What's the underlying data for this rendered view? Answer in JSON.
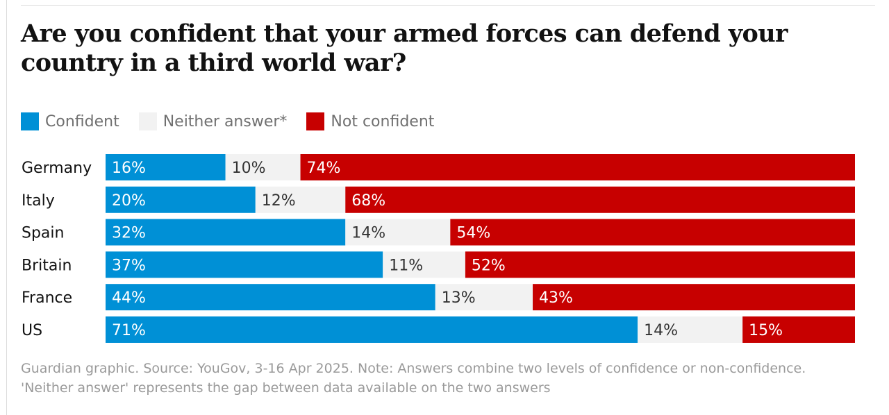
{
  "chart_data": {
    "type": "bar",
    "stacked": true,
    "orientation": "horizontal",
    "title": "Are you confident that your armed forces can defend your country in a third world war?",
    "categories": [
      "Germany",
      "Italy",
      "Spain",
      "Britain",
      "France",
      "US"
    ],
    "series": [
      {
        "name": "Confident",
        "color": "#0090d6",
        "label_color": "#ffffff",
        "values": [
          16,
          20,
          32,
          37,
          44,
          71
        ]
      },
      {
        "name": "Neither answer*",
        "color": "#f2f2f2",
        "label_color": "#333333",
        "values": [
          10,
          12,
          14,
          11,
          13,
          14
        ]
      },
      {
        "name": "Not confident",
        "color": "#c70000",
        "label_color": "#ffffff",
        "values": [
          74,
          68,
          54,
          52,
          43,
          15
        ]
      }
    ],
    "value_suffix": "%",
    "xlim": [
      0,
      100
    ],
    "grid": false,
    "legend_position": "top-left"
  },
  "footer": "Guardian graphic. Source: YouGov, 3-16 Apr 2025. Note: Answers combine two levels of confidence or non-confidence. 'Neither answer' represents the gap between data available on the two answers"
}
